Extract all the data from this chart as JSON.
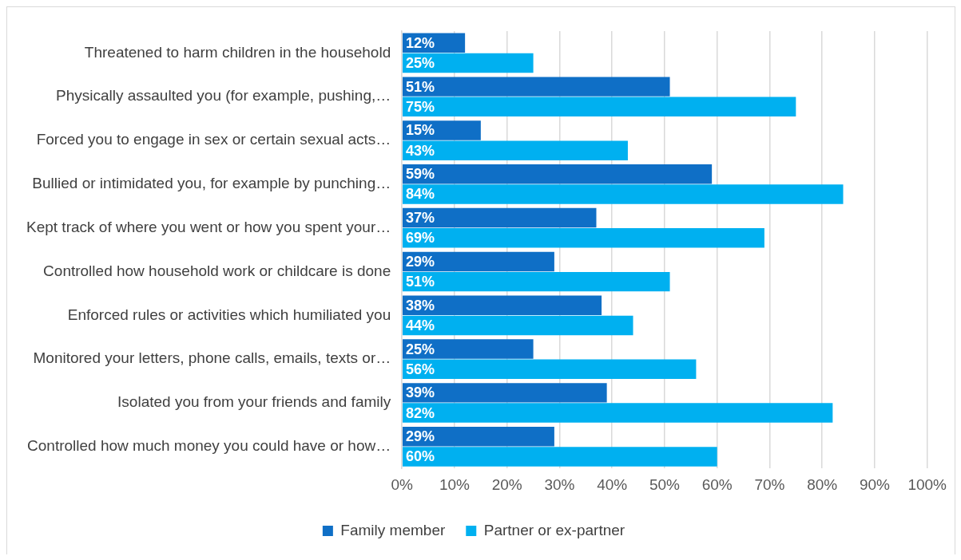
{
  "chart_data": {
    "type": "bar",
    "orientation": "horizontal",
    "categories": [
      "Threatened to harm children in the household",
      "Physically assaulted you (for example, pushing,…",
      "Forced you to engage in sex or certain sexual acts…",
      "Bullied or intimidated you, for example by punching…",
      "Kept track of where you went or how you spent your…",
      "Controlled how household work or childcare is done",
      "Enforced rules or activities which humiliated you",
      "Monitored your letters, phone calls, emails, texts or…",
      "Isolated you from your friends and family",
      "Controlled how much money you could have or how…"
    ],
    "series": [
      {
        "name": "Family member",
        "color": "#0f6fc6",
        "values": [
          12,
          51,
          15,
          59,
          37,
          29,
          38,
          25,
          39,
          29
        ],
        "value_labels": [
          "12%",
          "51%",
          "15%",
          "59%",
          "37%",
          "29%",
          "38%",
          "25%",
          "39%",
          "29%"
        ]
      },
      {
        "name": "Partner or ex-partner",
        "color": "#00b0f0",
        "values": [
          25,
          75,
          43,
          84,
          69,
          51,
          44,
          56,
          82,
          60
        ],
        "value_labels": [
          "25%",
          "75%",
          "43%",
          "84%",
          "69%",
          "51%",
          "44%",
          "56%",
          "82%",
          "60%"
        ]
      }
    ],
    "xlim": [
      0,
      100
    ],
    "xticks": [
      {
        "value": 0,
        "label": "0%"
      },
      {
        "value": 10,
        "label": "10%"
      },
      {
        "value": 20,
        "label": "20%"
      },
      {
        "value": 30,
        "label": "30%"
      },
      {
        "value": 40,
        "label": "40%"
      },
      {
        "value": 50,
        "label": "50%"
      },
      {
        "value": 60,
        "label": "60%"
      },
      {
        "value": 70,
        "label": "70%"
      },
      {
        "value": 80,
        "label": "80%"
      },
      {
        "value": 90,
        "label": "90%"
      },
      {
        "value": 100,
        "label": "100%"
      }
    ],
    "grid": "x",
    "legend": "bottom"
  }
}
